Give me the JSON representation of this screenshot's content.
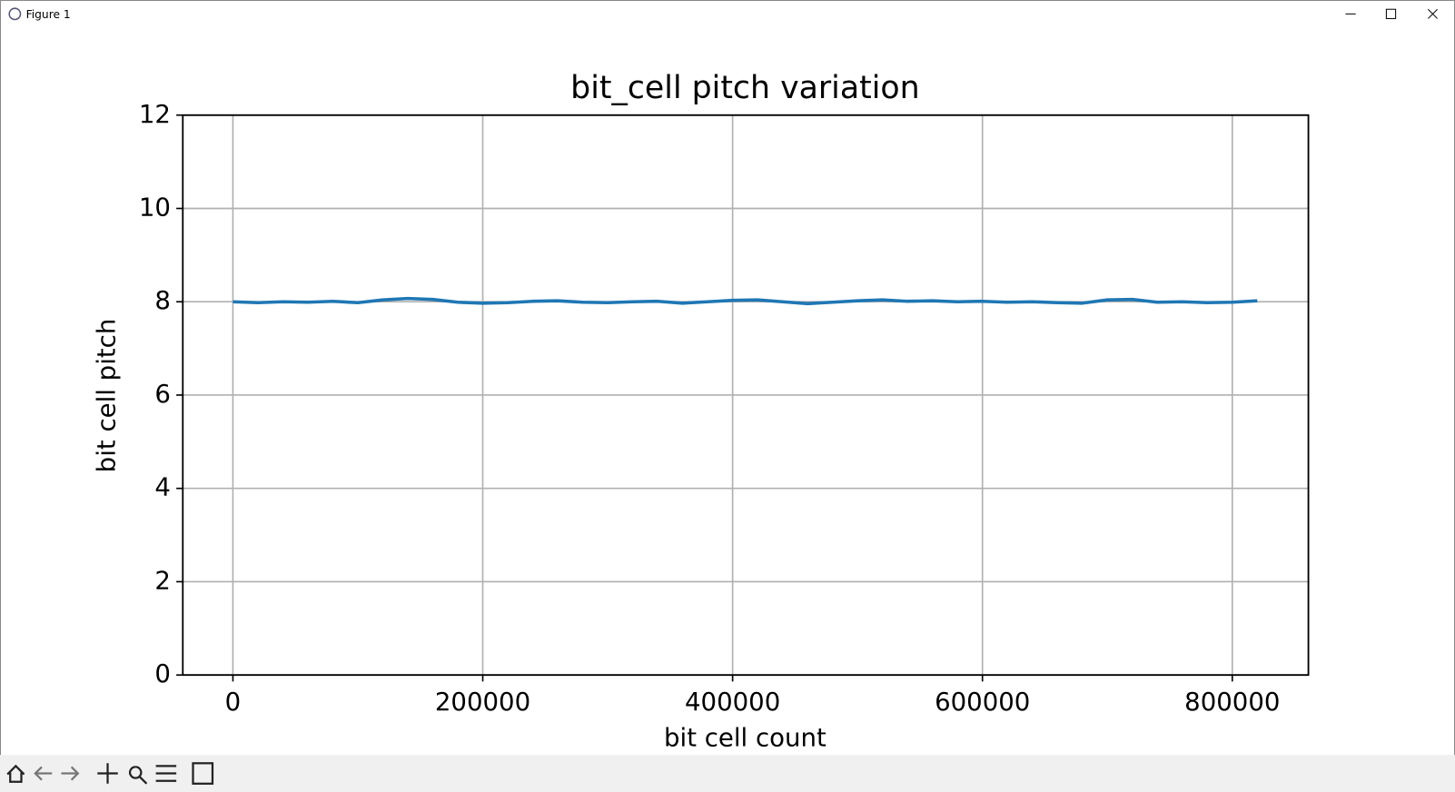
{
  "window_title": "Figure 1",
  "chart_data": {
    "type": "line",
    "title": "bit_cell pitch variation",
    "x_label": "bit cell count",
    "y_label": "bit cell pitch",
    "x": [
      0,
      20000,
      40000,
      60000,
      80000,
      100000,
      120000,
      140000,
      160000,
      180000,
      200000,
      220000,
      240000,
      260000,
      280000,
      300000,
      320000,
      340000,
      360000,
      380000,
      400000,
      420000,
      440000,
      460000,
      480000,
      500000,
      520000,
      540000,
      560000,
      580000,
      600000,
      620000,
      640000,
      660000,
      680000,
      700000,
      720000,
      740000,
      760000,
      780000,
      800000,
      820000
    ],
    "series": [
      {
        "color": "#1f77b4",
        "values": [
          8.0,
          7.98,
          8.0,
          7.99,
          8.01,
          7.98,
          8.04,
          8.07,
          8.05,
          7.99,
          7.97,
          7.98,
          8.01,
          8.02,
          7.99,
          7.98,
          8.0,
          8.01,
          7.97,
          8.0,
          8.03,
          8.04,
          8.0,
          7.96,
          7.99,
          8.02,
          8.04,
          8.01,
          8.02,
          8.0,
          8.01,
          7.99,
          8.0,
          7.98,
          7.97,
          8.04,
          8.05,
          7.99,
          8.0,
          7.98,
          7.99,
          8.02
        ]
      }
    ],
    "xlim": [
      -40111,
      860910
    ],
    "ylim": [
      0,
      12
    ],
    "xticks": [
      0,
      200000,
      400000,
      600000,
      800000
    ],
    "yticks": [
      0,
      2,
      4,
      6,
      8,
      10,
      12
    ],
    "grid": true
  }
}
